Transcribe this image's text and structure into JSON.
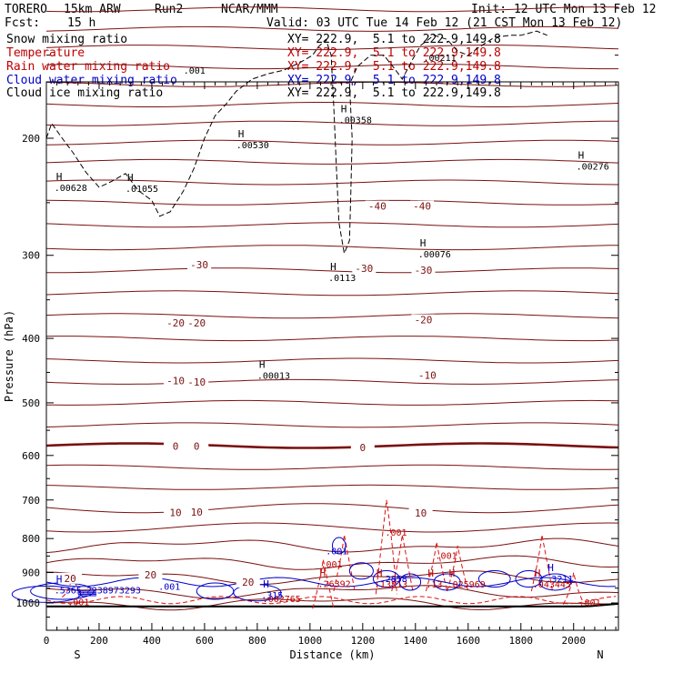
{
  "header": {
    "model": "TORERO",
    "resolution": "15km ARW",
    "run": "Run2",
    "org": "NCAR/MMM",
    "init": "Init: 12 UTC Mon 13 Feb 12",
    "fcst_label": "Fcst:",
    "fcst_value": "15 h",
    "valid": "Valid: 03 UTC Tue 14 Feb 12 (21 CST Mon 13 Feb 12)",
    "fields": [
      {
        "name": "Snow mixing ratio",
        "color": "#000000"
      },
      {
        "name": "Temperature",
        "color": "#c00000"
      },
      {
        "name": "Rain water mixing ratio",
        "color": "#c00000"
      },
      {
        "name": "Cloud water mixing ratio",
        "color": "#0000cc"
      },
      {
        "name": "Cloud ice mixing ratio",
        "color": "#000000"
      }
    ],
    "xy_range": "XY= 222.9,  5.1 to 222.9,149.8"
  },
  "chart_data": {
    "type": "cross-section",
    "xlabel": "Distance (km)",
    "ylabel": "Pressure (hPa)",
    "xlim": [
      0,
      2170
    ],
    "ylim": [
      1050,
      100
    ],
    "x_ticks": [
      0,
      200,
      400,
      600,
      800,
      1000,
      1200,
      1400,
      1600,
      1800,
      2000
    ],
    "y_ticks": [
      200,
      300,
      400,
      500,
      600,
      700,
      800,
      900,
      1000
    ],
    "x_end_labels": {
      "left": "S",
      "right": "N"
    },
    "temperature_isotherms": [
      {
        "label": "-40",
        "labels_at": [
          [
            1255,
            253
          ],
          [
            1425,
            253
          ]
        ]
      },
      {
        "label": "-30",
        "labels_at": [
          [
            580,
            310
          ],
          [
            1205,
            314
          ],
          [
            1430,
            316
          ]
        ]
      },
      {
        "label": "-20",
        "labels_at": [
          [
            490,
            379
          ],
          [
            570,
            379
          ],
          [
            1430,
            375
          ]
        ]
      },
      {
        "label": "-10",
        "labels_at": [
          [
            490,
            463
          ],
          [
            570,
            465
          ],
          [
            1445,
            454
          ]
        ]
      },
      {
        "label": "0",
        "labels_at": [
          [
            490,
            581
          ],
          [
            570,
            581
          ],
          [
            1200,
            584
          ]
        ]
      },
      {
        "label": "10",
        "labels_at": [
          [
            490,
            731
          ],
          [
            570,
            730
          ],
          [
            1420,
            732
          ]
        ]
      },
      {
        "label": "20",
        "labels_at": [
          [
            90,
            918
          ],
          [
            395,
            907
          ],
          [
            765,
            930
          ]
        ]
      }
    ],
    "contour_annotations": [
      {
        "text": ".001",
        "series": "snow",
        "x": 520,
        "p": 160
      },
      {
        "text": ".00211",
        "series": "snow",
        "x": 1430,
        "p": 153
      },
      {
        "text": ".00358",
        "series": "snow",
        "x": 1110,
        "p": 190,
        "h": true
      },
      {
        "text": ".00530",
        "series": "snow",
        "x": 720,
        "p": 207,
        "h": true
      },
      {
        "text": ".00628",
        "series": "snow",
        "x": 30,
        "p": 240,
        "h": true
      },
      {
        "text": ".01055",
        "series": "snow",
        "x": 300,
        "p": 241,
        "h": true
      },
      {
        "text": ".00276",
        "series": "snow",
        "x": 2010,
        "p": 223,
        "h": true
      },
      {
        "text": ".00076",
        "series": "snow",
        "x": 1410,
        "p": 302,
        "h": true
      },
      {
        "text": ".0113",
        "series": "snow",
        "x": 1070,
        "p": 328,
        "h": true
      },
      {
        "text": ".00013",
        "series": "snow",
        "x": 800,
        "p": 460,
        "h": true
      },
      {
        "text": ".001",
        "series": "rain",
        "x": 1285,
        "p": 792
      },
      {
        "text": ".001",
        "series": "rain",
        "x": 1475,
        "p": 859
      },
      {
        "text": ".001",
        "series": "rain",
        "x": 1040,
        "p": 885
      },
      {
        "text": ".001",
        "series": "rain",
        "x": 80,
        "p": 1008
      },
      {
        "text": ".001",
        "series": "rain",
        "x": 2020,
        "p": 1010
      },
      {
        "text": ".26392",
        "series": "rain",
        "x": 1030,
        "p": 946,
        "h": true
      },
      {
        "text": ".13813",
        "series": "rain",
        "x": 1245,
        "p": 948,
        "h": true
      },
      {
        "text": ".025969",
        "series": "rain",
        "x": 1520,
        "p": 948,
        "h": true
      },
      {
        "text": ".13",
        "series": "rain",
        "x": 1440,
        "p": 948,
        "h": true
      },
      {
        "text": ".043445",
        "series": "rain",
        "x": 1845,
        "p": 948,
        "h": true
      },
      {
        "text": ".002765",
        "series": "rain",
        "x": 820,
        "p": 997
      },
      {
        "text": ".001",
        "series": "cloud",
        "x": 1060,
        "p": 845
      },
      {
        "text": ".001",
        "series": "cloud",
        "x": 425,
        "p": 956
      },
      {
        "text": ".5365",
        "series": "cloud",
        "x": 30,
        "p": 967,
        "h": true
      },
      {
        "text": ".2238973293",
        "series": "cloud",
        "x": 130,
        "p": 967
      },
      {
        "text": ".2858",
        "series": "cloud",
        "x": 1265,
        "p": 930
      },
      {
        "text": ".3211",
        "series": "cloud",
        "x": 1895,
        "p": 930,
        "h": true
      },
      {
        "text": ".315",
        "series": "cloud",
        "x": 815,
        "p": 985,
        "h": true
      }
    ]
  }
}
